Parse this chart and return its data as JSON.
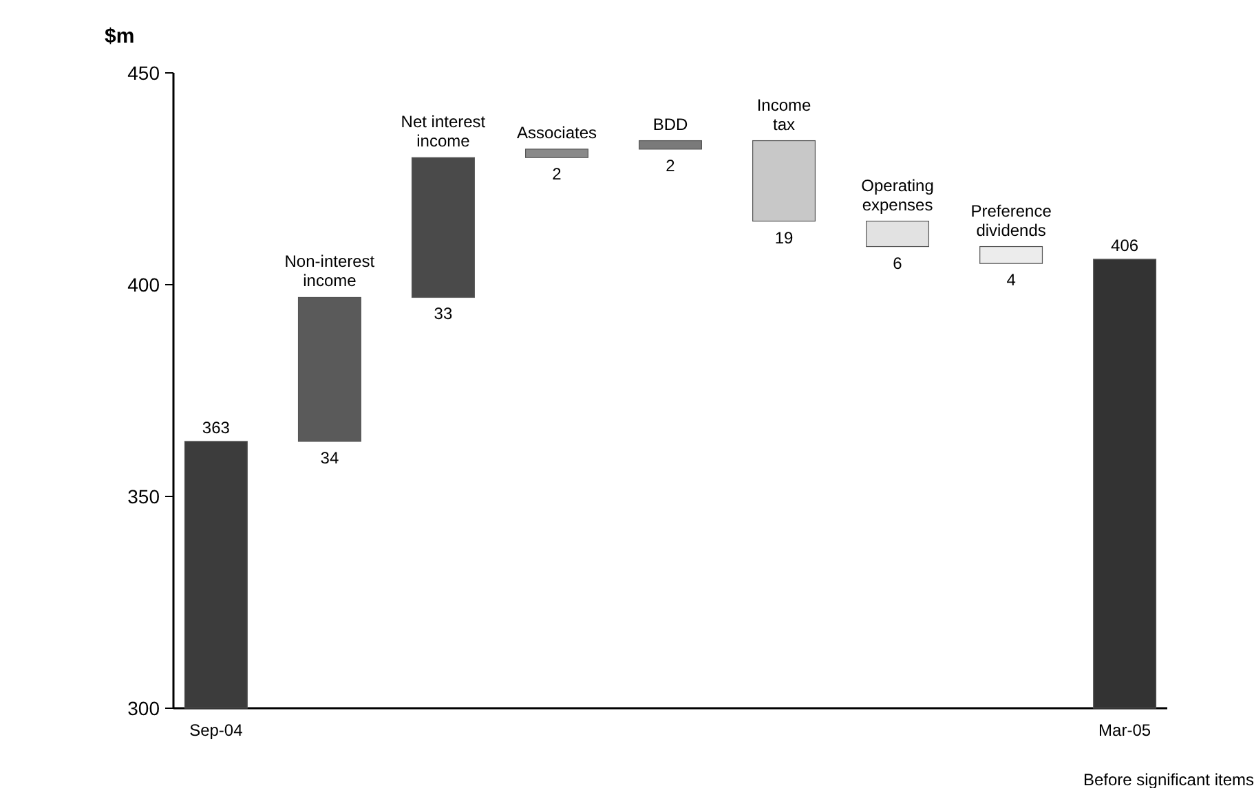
{
  "chart_data": {
    "type": "bar",
    "ylabel": "$m",
    "categories": [
      "Sep-04",
      "Non-interest income",
      "Net interest income",
      "Associates",
      "BDD",
      "Income tax",
      "Operating expenses",
      "Preference dividends",
      "Mar-05"
    ],
    "values": [
      363,
      34,
      33,
      2,
      2,
      -19,
      -6,
      -4,
      406
    ],
    "base": [
      null,
      363,
      397,
      430,
      432,
      434,
      415,
      409,
      null
    ],
    "value_labels": [
      "363",
      "34",
      "33",
      "2",
      "2",
      "19",
      "6",
      "4",
      "406"
    ],
    "colors": [
      "#3c3c3c",
      "#5a5a5a",
      "#4a4a4a",
      "#8a8a8a",
      "#7a7a7a",
      "#c8c8c8",
      "#e2e2e2",
      "#ececec",
      "#333333"
    ],
    "ylim": [
      300,
      450
    ],
    "yticks": [
      300,
      350,
      400,
      450
    ],
    "grid": false,
    "annotations": [
      "Before significant items"
    ]
  }
}
